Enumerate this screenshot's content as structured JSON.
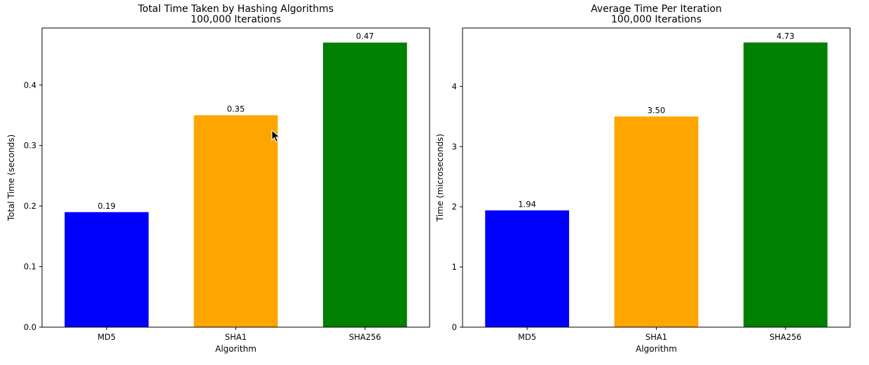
{
  "chart_data": [
    {
      "type": "bar",
      "title": "Total Time Taken by Hashing Algorithms",
      "subtitle": "100,000 Iterations",
      "xlabel": "Algorithm",
      "ylabel": "Total Time (seconds)",
      "categories": [
        "MD5",
        "SHA1",
        "SHA256"
      ],
      "values": [
        0.19,
        0.35,
        0.47
      ],
      "value_labels": [
        "0.19",
        "0.35",
        "0.47"
      ],
      "colors": [
        "#0000ff",
        "#ffa500",
        "#008000"
      ],
      "ylim": [
        0,
        0.494
      ],
      "yticks": [
        0.0,
        0.1,
        0.2,
        0.3,
        0.4
      ],
      "ytick_labels": [
        "0.0",
        "0.1",
        "0.2",
        "0.3",
        "0.4"
      ],
      "grid": false,
      "legend": "none"
    },
    {
      "type": "bar",
      "title": "Average Time Per Iteration",
      "subtitle": "100,000 Iterations",
      "xlabel": "Algorithm",
      "ylabel": "Time (microseconds)",
      "categories": [
        "MD5",
        "SHA1",
        "SHA256"
      ],
      "values": [
        1.94,
        3.5,
        4.73
      ],
      "value_labels": [
        "1.94",
        "3.50",
        "4.73"
      ],
      "colors": [
        "#0000ff",
        "#ffa500",
        "#008000"
      ],
      "ylim": [
        0,
        4.97
      ],
      "yticks": [
        0,
        1,
        2,
        3,
        4
      ],
      "ytick_labels": [
        "0",
        "1",
        "2",
        "3",
        "4"
      ],
      "grid": false,
      "legend": "none"
    }
  ],
  "cursor": {
    "icon": "arrow-cursor-icon"
  }
}
